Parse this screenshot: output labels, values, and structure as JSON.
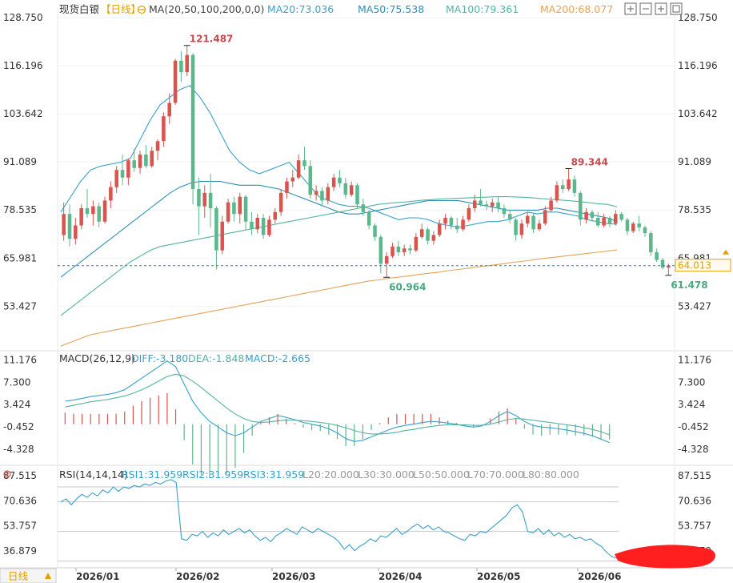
{
  "header": {
    "instrument": "现货白银",
    "period": "日线",
    "ma_label": "MA(20,50,100,200,0,0)",
    "ma20": "MA20:73.036",
    "ma50": "MA50:75.538",
    "ma100": "MA100:79.361",
    "ma200": "MA200:68.077"
  },
  "macd_header": {
    "label": "MACD(26,12,9)",
    "diff": "DIFF:-3.180",
    "dea": "DEA:-1.848",
    "macd": "MACD:-2.665"
  },
  "rsi_header": {
    "label": "RSI(14,14,14)",
    "rsi1": "RSI1:31.959",
    "rsi2": "RSI2:31.959",
    "rsi3": "RSI3:31.959",
    "l20": "L20:20.000",
    "l30": "L30:30.000",
    "l50": "L50:50.000",
    "l70": "L70:70.000",
    "l80": "L80:80.000"
  },
  "bottom_bar": {
    "period_button": "日线"
  },
  "colors": {
    "up": "#d9534f",
    "down": "#5cb88c",
    "ma20": "#3aa0c8",
    "ma50": "#2e8fb5",
    "ma100": "#53b3a0",
    "ma200": "#e4a35a",
    "price_line": "#2a7fb0",
    "current_label": "#e0a000"
  },
  "chart_data": {
    "type": "candlestick",
    "x_ticks": [
      "2026/01",
      "2026/02",
      "2026/03",
      "2026/04",
      "2026/05",
      "2026/06"
    ],
    "price_axis": {
      "ticks": [
        "128.750",
        "116.196",
        "103.642",
        "91.089",
        "78.535",
        "65.981",
        "53.427"
      ],
      "ylim": [
        42.0,
        128.75
      ]
    },
    "current_price": "64.013",
    "annotations": {
      "high": "121.487",
      "low_mar": "60.964",
      "peak_may": "89.344",
      "last_low": "61.478"
    },
    "candles": [
      {
        "o": 72.0,
        "h": 80.5,
        "l": 70.5,
        "c": 77.5
      },
      {
        "o": 77.5,
        "h": 80.0,
        "l": 69.0,
        "c": 71.0
      },
      {
        "o": 71.0,
        "h": 76.5,
        "l": 69.5,
        "c": 74.5
      },
      {
        "o": 74.5,
        "h": 80.0,
        "l": 73.5,
        "c": 79.0
      },
      {
        "o": 79.0,
        "h": 84.0,
        "l": 76.5,
        "c": 77.5
      },
      {
        "o": 77.5,
        "h": 81.0,
        "l": 74.5,
        "c": 79.5
      },
      {
        "o": 79.5,
        "h": 80.5,
        "l": 74.0,
        "c": 75.5
      },
      {
        "o": 75.5,
        "h": 82.0,
        "l": 75.0,
        "c": 81.0
      },
      {
        "o": 81.0,
        "h": 86.0,
        "l": 79.0,
        "c": 84.5
      },
      {
        "o": 84.5,
        "h": 90.0,
        "l": 83.0,
        "c": 89.0
      },
      {
        "o": 89.0,
        "h": 93.0,
        "l": 85.0,
        "c": 87.0
      },
      {
        "o": 87.0,
        "h": 92.0,
        "l": 85.0,
        "c": 91.5
      },
      {
        "o": 91.5,
        "h": 94.5,
        "l": 88.5,
        "c": 89.5
      },
      {
        "o": 89.5,
        "h": 94.0,
        "l": 88.0,
        "c": 93.0
      },
      {
        "o": 93.0,
        "h": 95.5,
        "l": 89.5,
        "c": 90.0
      },
      {
        "o": 90.0,
        "h": 95.0,
        "l": 89.5,
        "c": 94.0
      },
      {
        "o": 94.0,
        "h": 97.0,
        "l": 91.5,
        "c": 96.5
      },
      {
        "o": 96.5,
        "h": 104.0,
        "l": 95.0,
        "c": 103.0
      },
      {
        "o": 103.0,
        "h": 109.0,
        "l": 101.0,
        "c": 106.5
      },
      {
        "o": 106.5,
        "h": 118.0,
        "l": 106.0,
        "c": 117.5
      },
      {
        "o": 117.5,
        "h": 120.0,
        "l": 112.0,
        "c": 114.5
      },
      {
        "o": 114.5,
        "h": 121.487,
        "l": 113.5,
        "c": 119.0
      },
      {
        "o": 119.0,
        "h": 119.5,
        "l": 80.0,
        "c": 84.0
      },
      {
        "o": 84.0,
        "h": 87.0,
        "l": 72.0,
        "c": 79.5
      },
      {
        "o": 79.5,
        "h": 85.0,
        "l": 76.5,
        "c": 83.0
      },
      {
        "o": 83.0,
        "h": 88.0,
        "l": 74.0,
        "c": 79.0
      },
      {
        "o": 79.0,
        "h": 79.5,
        "l": 63.0,
        "c": 68.0
      },
      {
        "o": 68.0,
        "h": 77.0,
        "l": 67.0,
        "c": 75.5
      },
      {
        "o": 75.5,
        "h": 81.5,
        "l": 75.0,
        "c": 80.5
      },
      {
        "o": 80.5,
        "h": 82.0,
        "l": 75.5,
        "c": 77.5
      },
      {
        "o": 77.5,
        "h": 83.0,
        "l": 75.0,
        "c": 82.0
      },
      {
        "o": 82.0,
        "h": 82.5,
        "l": 73.5,
        "c": 75.5
      },
      {
        "o": 75.5,
        "h": 78.0,
        "l": 72.0,
        "c": 73.5
      },
      {
        "o": 73.5,
        "h": 77.5,
        "l": 72.5,
        "c": 76.5
      },
      {
        "o": 76.5,
        "h": 77.5,
        "l": 71.0,
        "c": 72.0
      },
      {
        "o": 72.0,
        "h": 77.0,
        "l": 71.5,
        "c": 76.0
      },
      {
        "o": 76.0,
        "h": 79.0,
        "l": 75.0,
        "c": 78.0
      },
      {
        "o": 78.0,
        "h": 84.0,
        "l": 77.0,
        "c": 83.0
      },
      {
        "o": 83.0,
        "h": 87.0,
        "l": 81.5,
        "c": 86.0
      },
      {
        "o": 86.0,
        "h": 89.0,
        "l": 84.5,
        "c": 87.0
      },
      {
        "o": 87.0,
        "h": 93.0,
        "l": 86.5,
        "c": 91.5
      },
      {
        "o": 91.5,
        "h": 95.0,
        "l": 89.0,
        "c": 90.0
      },
      {
        "o": 90.0,
        "h": 91.5,
        "l": 81.5,
        "c": 82.5
      },
      {
        "o": 82.5,
        "h": 85.0,
        "l": 81.0,
        "c": 83.5
      },
      {
        "o": 83.5,
        "h": 84.5,
        "l": 79.5,
        "c": 81.0
      },
      {
        "o": 81.0,
        "h": 85.5,
        "l": 80.0,
        "c": 84.5
      },
      {
        "o": 84.5,
        "h": 88.0,
        "l": 83.5,
        "c": 87.0
      },
      {
        "o": 87.0,
        "h": 89.0,
        "l": 84.5,
        "c": 85.5
      },
      {
        "o": 85.5,
        "h": 87.0,
        "l": 81.5,
        "c": 82.5
      },
      {
        "o": 82.5,
        "h": 86.0,
        "l": 82.0,
        "c": 85.0
      },
      {
        "o": 85.0,
        "h": 85.5,
        "l": 79.0,
        "c": 80.0
      },
      {
        "o": 80.0,
        "h": 81.5,
        "l": 77.0,
        "c": 78.0
      },
      {
        "o": 78.0,
        "h": 78.5,
        "l": 73.5,
        "c": 74.5
      },
      {
        "o": 74.5,
        "h": 75.0,
        "l": 70.5,
        "c": 71.5
      },
      {
        "o": 71.5,
        "h": 72.0,
        "l": 62.0,
        "c": 64.5
      },
      {
        "o": 64.5,
        "h": 67.5,
        "l": 60.964,
        "c": 66.5
      },
      {
        "o": 66.5,
        "h": 70.0,
        "l": 66.0,
        "c": 69.0
      },
      {
        "o": 69.0,
        "h": 70.5,
        "l": 66.5,
        "c": 67.5
      },
      {
        "o": 67.5,
        "h": 69.5,
        "l": 66.5,
        "c": 68.5
      },
      {
        "o": 68.5,
        "h": 69.5,
        "l": 67.0,
        "c": 68.0
      },
      {
        "o": 68.0,
        "h": 72.5,
        "l": 67.5,
        "c": 71.5
      },
      {
        "o": 71.5,
        "h": 75.0,
        "l": 71.0,
        "c": 73.5
      },
      {
        "o": 73.5,
        "h": 74.0,
        "l": 69.5,
        "c": 70.5
      },
      {
        "o": 70.5,
        "h": 73.0,
        "l": 69.5,
        "c": 72.0
      },
      {
        "o": 72.0,
        "h": 76.0,
        "l": 71.5,
        "c": 75.0
      },
      {
        "o": 75.0,
        "h": 77.5,
        "l": 73.5,
        "c": 76.5
      },
      {
        "o": 76.5,
        "h": 77.0,
        "l": 73.5,
        "c": 74.5
      },
      {
        "o": 74.5,
        "h": 76.5,
        "l": 72.5,
        "c": 73.5
      },
      {
        "o": 73.5,
        "h": 77.0,
        "l": 73.0,
        "c": 76.0
      },
      {
        "o": 76.0,
        "h": 80.0,
        "l": 75.5,
        "c": 79.0
      },
      {
        "o": 79.0,
        "h": 82.5,
        "l": 78.0,
        "c": 81.0
      },
      {
        "o": 81.0,
        "h": 84.0,
        "l": 79.5,
        "c": 80.0
      },
      {
        "o": 80.0,
        "h": 81.0,
        "l": 78.5,
        "c": 79.5
      },
      {
        "o": 79.5,
        "h": 81.5,
        "l": 78.0,
        "c": 80.5
      },
      {
        "o": 80.5,
        "h": 82.0,
        "l": 78.0,
        "c": 79.0
      },
      {
        "o": 79.0,
        "h": 80.0,
        "l": 76.5,
        "c": 77.5
      },
      {
        "o": 77.5,
        "h": 78.5,
        "l": 75.0,
        "c": 76.0
      },
      {
        "o": 76.0,
        "h": 76.5,
        "l": 70.5,
        "c": 72.0
      },
      {
        "o": 72.0,
        "h": 76.0,
        "l": 71.0,
        "c": 75.0
      },
      {
        "o": 75.0,
        "h": 78.0,
        "l": 74.0,
        "c": 77.0
      },
      {
        "o": 77.0,
        "h": 77.5,
        "l": 72.5,
        "c": 73.5
      },
      {
        "o": 73.5,
        "h": 76.0,
        "l": 73.0,
        "c": 75.0
      },
      {
        "o": 75.0,
        "h": 79.5,
        "l": 74.5,
        "c": 78.5
      },
      {
        "o": 78.5,
        "h": 82.0,
        "l": 78.0,
        "c": 81.0
      },
      {
        "o": 81.0,
        "h": 86.0,
        "l": 80.5,
        "c": 85.0
      },
      {
        "o": 85.0,
        "h": 86.5,
        "l": 83.0,
        "c": 84.0
      },
      {
        "o": 84.0,
        "h": 89.344,
        "l": 83.5,
        "c": 86.5
      },
      {
        "o": 86.5,
        "h": 87.5,
        "l": 82.0,
        "c": 83.0
      },
      {
        "o": 83.0,
        "h": 83.5,
        "l": 74.5,
        "c": 76.0
      },
      {
        "o": 76.0,
        "h": 79.0,
        "l": 75.0,
        "c": 78.0
      },
      {
        "o": 78.0,
        "h": 78.5,
        "l": 75.5,
        "c": 76.5
      },
      {
        "o": 76.5,
        "h": 78.0,
        "l": 74.0,
        "c": 74.5
      },
      {
        "o": 74.5,
        "h": 77.5,
        "l": 74.0,
        "c": 76.5
      },
      {
        "o": 76.5,
        "h": 77.0,
        "l": 74.0,
        "c": 75.0
      },
      {
        "o": 75.0,
        "h": 78.5,
        "l": 74.5,
        "c": 77.5
      },
      {
        "o": 77.5,
        "h": 78.0,
        "l": 75.5,
        "c": 76.0
      },
      {
        "o": 76.0,
        "h": 76.5,
        "l": 72.0,
        "c": 73.0
      },
      {
        "o": 73.0,
        "h": 75.5,
        "l": 72.5,
        "c": 75.0
      },
      {
        "o": 75.0,
        "h": 77.0,
        "l": 73.0,
        "c": 74.0
      },
      {
        "o": 74.0,
        "h": 74.5,
        "l": 71.5,
        "c": 72.5
      },
      {
        "o": 72.5,
        "h": 73.0,
        "l": 66.5,
        "c": 67.5
      },
      {
        "o": 67.5,
        "h": 68.5,
        "l": 65.0,
        "c": 65.5
      },
      {
        "o": 65.5,
        "h": 66.0,
        "l": 63.0,
        "c": 63.5
      },
      {
        "o": 63.5,
        "h": 64.5,
        "l": 61.478,
        "c": 64.013
      }
    ],
    "ma_lines": {
      "ma20": [
        78,
        82,
        86,
        89,
        90,
        90.5,
        91,
        92,
        97,
        102,
        106,
        108,
        110,
        111,
        108,
        104,
        99,
        94,
        91,
        89,
        88,
        89,
        90,
        91,
        88,
        85,
        82,
        81,
        80,
        79.5,
        79.5,
        79,
        78,
        77,
        76,
        76.5,
        76.5,
        76,
        75,
        74.5,
        74,
        74.5,
        75,
        75.5,
        75.5,
        76,
        77,
        78,
        77.5,
        78,
        78,
        77.5,
        77,
        76,
        75.5,
        75,
        74.8
      ],
      "ma50": [
        61,
        63,
        65,
        67,
        69,
        71,
        73,
        75,
        77,
        79,
        81,
        83,
        84.5,
        85.5,
        86,
        86,
        86,
        85.5,
        85,
        85,
        85,
        84.5,
        84,
        83,
        82,
        81,
        80,
        79,
        78,
        77.5,
        77.5,
        78,
        78.5,
        79,
        79.5,
        80,
        80.5,
        81,
        81,
        81,
        81,
        80.5,
        80,
        79.5,
        79,
        78.5,
        78.5,
        78.5,
        78.5,
        79,
        79,
        78.5,
        78,
        77.5,
        77,
        76.5,
        75.5
      ],
      "ma100": [
        51,
        53,
        55,
        57,
        59,
        61,
        63,
        65,
        66.5,
        68,
        69,
        69.5,
        70,
        70.5,
        71,
        71.5,
        72,
        72.5,
        73,
        73.5,
        74,
        74.5,
        75,
        75.5,
        76,
        76.5,
        77,
        77.5,
        78,
        78.5,
        79,
        79.5,
        80,
        80.3,
        80.5,
        80.7,
        81,
        81.2,
        81.4,
        81.5,
        81.6,
        81.7,
        81.8,
        81.9,
        82,
        82,
        81.9,
        81.8,
        81.6,
        81.4,
        81.2,
        81,
        80.8,
        80.5,
        80.2,
        80,
        79.4
      ],
      "ma200": [
        43,
        44,
        45,
        46,
        46.5,
        47,
        47.5,
        48,
        48.5,
        49,
        49.5,
        50,
        50.5,
        51,
        51.5,
        52,
        52.5,
        53,
        53.5,
        54,
        54.5,
        55,
        55.5,
        56,
        56.5,
        57,
        57.5,
        58,
        58.5,
        59,
        59.5,
        60,
        60.3,
        60.7,
        61,
        61.3,
        61.7,
        62,
        62.3,
        62.7,
        63,
        63.3,
        63.7,
        64,
        64.3,
        64.7,
        65,
        65.3,
        65.7,
        66,
        66.3,
        66.6,
        66.9,
        67.2,
        67.5,
        67.8,
        68.1
      ]
    },
    "macd": {
      "ticks": [
        "11.176",
        "7.300",
        "3.424",
        "-0.452",
        "-4.328"
      ],
      "ylim": [
        -7.0,
        12.5
      ],
      "diff": [
        4.0,
        4.2,
        4.5,
        4.8,
        5.0,
        5.2,
        5.5,
        6.0,
        7.0,
        8.0,
        9.0,
        10.0,
        11.0,
        10.0,
        7.0,
        4.0,
        2.0,
        0.5,
        -0.5,
        -1.5,
        -2.0,
        -1.5,
        -0.5,
        0.5,
        1.0,
        1.5,
        1.2,
        0.8,
        0.3,
        0.0,
        -0.3,
        -0.8,
        -1.5,
        -2.5,
        -3.0,
        -2.8,
        -2.2,
        -1.6,
        -1.0,
        -0.5,
        -0.2,
        0.0,
        0.3,
        0.5,
        0.4,
        0.2,
        0.0,
        -0.3,
        -0.5,
        -0.3,
        0.5,
        1.5,
        2.2,
        1.5,
        0.5,
        -0.2,
        -0.5,
        -0.6,
        -0.8,
        -1.0,
        -1.3,
        -1.6,
        -2.0,
        -2.6,
        -3.18
      ],
      "dea": [
        3.0,
        3.3,
        3.6,
        3.9,
        4.1,
        4.3,
        4.6,
        4.9,
        5.4,
        6.0,
        6.7,
        7.5,
        8.3,
        8.7,
        8.4,
        7.5,
        6.4,
        5.2,
        4.0,
        2.8,
        1.8,
        1.0,
        0.5,
        0.3,
        0.4,
        0.6,
        0.7,
        0.7,
        0.6,
        0.5,
        0.3,
        0.1,
        -0.2,
        -0.6,
        -1.1,
        -1.5,
        -1.7,
        -1.7,
        -1.6,
        -1.4,
        -1.1,
        -0.9,
        -0.6,
        -0.4,
        -0.2,
        -0.1,
        -0.1,
        -0.1,
        -0.2,
        -0.2,
        0.0,
        0.4,
        0.8,
        1.0,
        0.9,
        0.7,
        0.5,
        0.3,
        0.1,
        -0.1,
        -0.3,
        -0.6,
        -0.9,
        -1.3,
        -1.848
      ],
      "hist": [
        2.0,
        1.8,
        1.8,
        1.8,
        1.8,
        1.8,
        1.8,
        2.2,
        3.2,
        4.0,
        4.6,
        5.0,
        5.4,
        2.6,
        -2.8,
        -7.0,
        -8.8,
        -9.4,
        -9.0,
        -8.6,
        -7.6,
        -5.0,
        -2.0,
        0.4,
        1.2,
        1.8,
        1.0,
        0.2,
        -0.6,
        -1.0,
        -1.2,
        -1.8,
        -2.6,
        -3.8,
        -3.8,
        -2.6,
        -1.0,
        0.2,
        1.2,
        1.8,
        1.8,
        1.8,
        1.8,
        1.8,
        1.2,
        0.6,
        0.2,
        -0.4,
        -0.6,
        -0.2,
        1.0,
        2.2,
        2.8,
        1.0,
        -0.8,
        -1.8,
        -2.0,
        -1.8,
        -1.8,
        -1.8,
        -2.0,
        -2.0,
        -2.2,
        -2.6,
        -2.665
      ]
    },
    "rsi": {
      "ticks": [
        "87.515",
        "70.636",
        "53.757",
        "36.879"
      ],
      "levels": [
        30,
        50,
        70,
        80
      ],
      "ylim": [
        26.0,
        93.0
      ],
      "values": [
        70,
        72,
        68,
        72,
        75,
        73,
        76,
        74,
        78,
        76,
        80,
        77,
        80,
        79,
        81,
        80,
        82,
        81,
        83,
        82,
        84,
        85,
        83,
        45,
        44,
        48,
        47,
        50,
        46,
        49,
        47,
        51,
        48,
        50,
        52,
        49,
        51,
        47,
        44,
        46,
        43,
        47,
        49,
        52,
        50,
        48,
        53,
        51,
        49,
        52,
        50,
        48,
        46,
        43,
        38,
        41,
        37,
        40,
        42,
        45,
        43,
        47,
        46,
        49,
        52,
        48,
        50,
        53,
        55,
        52,
        54,
        51,
        53,
        50,
        49,
        47,
        45,
        44,
        48,
        47,
        50,
        49,
        52,
        55,
        58,
        61,
        66,
        68,
        63,
        50,
        49,
        52,
        48,
        51,
        47,
        49,
        46,
        48,
        45,
        46,
        44,
        45,
        42,
        40,
        36,
        33,
        31.959
      ]
    }
  }
}
